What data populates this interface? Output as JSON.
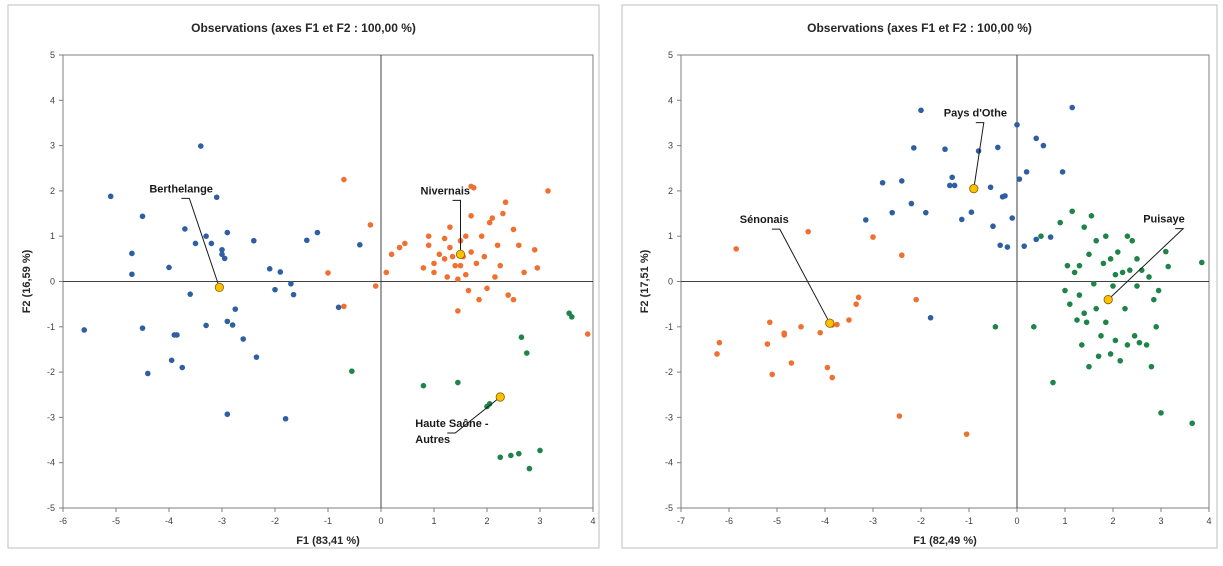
{
  "chart_data": [
    {
      "type": "scatter",
      "title": "Observations (axes F1 et F2 : 100,00 %)",
      "xlabel": "F1 (83,41 %)",
      "ylabel": "F2 (16,59 %)",
      "xlim": [
        -6,
        4
      ],
      "ylim": [
        -5,
        5
      ],
      "xticks": [
        "-6",
        "-5",
        "-4",
        "-3",
        "-2",
        "-1",
        "0",
        "1",
        "2",
        "3",
        "4"
      ],
      "yticks": [
        "-5",
        "-4",
        "-3",
        "-2",
        "-1",
        "0",
        "1",
        "2",
        "3",
        "4",
        "5"
      ],
      "grid": false,
      "legend": "none",
      "colors": {
        "blue": "#2e5fa3",
        "orange": "#ef7030",
        "green": "#1f8449",
        "centroid": "#ffc000"
      },
      "series": [
        {
          "color": "blue",
          "points": [
            [
              -5.6,
              -1.07
            ],
            [
              -5.1,
              1.88
            ],
            [
              -4.7,
              0.62
            ],
            [
              -4.7,
              0.16
            ],
            [
              -4.5,
              1.44
            ],
            [
              -4.5,
              -1.03
            ],
            [
              -4.4,
              -2.03
            ],
            [
              -4.0,
              0.31
            ],
            [
              -3.95,
              -1.74
            ],
            [
              -3.9,
              -1.18
            ],
            [
              -3.85,
              -1.18
            ],
            [
              -3.75,
              -1.9
            ],
            [
              -3.7,
              1.16
            ],
            [
              -3.6,
              -0.28
            ],
            [
              -3.5,
              0.84
            ],
            [
              -3.4,
              2.99
            ],
            [
              -3.3,
              -0.97
            ],
            [
              -3.3,
              1.0
            ],
            [
              -3.2,
              0.84
            ],
            [
              -3.1,
              1.86
            ],
            [
              -3.0,
              0.7
            ],
            [
              -3.0,
              0.6
            ],
            [
              -2.95,
              0.51
            ],
            [
              -2.9,
              1.08
            ],
            [
              -2.9,
              -0.88
            ],
            [
              -2.8,
              -0.96
            ],
            [
              -2.9,
              -2.93
            ],
            [
              -2.75,
              -0.61
            ],
            [
              -2.6,
              -1.27
            ],
            [
              -2.4,
              0.9
            ],
            [
              -2.35,
              -1.67
            ],
            [
              -2.1,
              0.28
            ],
            [
              -2.0,
              -0.18
            ],
            [
              -1.9,
              0.21
            ],
            [
              -1.8,
              -3.03
            ],
            [
              -1.7,
              -0.05
            ],
            [
              -1.65,
              -0.29
            ],
            [
              -1.4,
              0.91
            ],
            [
              -1.2,
              1.08
            ],
            [
              -0.8,
              -0.57
            ],
            [
              -0.4,
              0.81
            ]
          ]
        },
        {
          "color": "orange",
          "points": [
            [
              -1.0,
              0.19
            ],
            [
              -0.7,
              2.25
            ],
            [
              -0.7,
              -0.55
            ],
            [
              -0.2,
              1.25
            ],
            [
              -0.1,
              -0.1
            ],
            [
              0.1,
              0.2
            ],
            [
              0.2,
              0.6
            ],
            [
              0.35,
              0.75
            ],
            [
              0.45,
              0.84
            ],
            [
              0.8,
              0.3
            ],
            [
              0.9,
              0.8
            ],
            [
              0.9,
              1.0
            ],
            [
              1.0,
              0.4
            ],
            [
              1.0,
              0.2
            ],
            [
              1.1,
              0.6
            ],
            [
              1.2,
              0.5
            ],
            [
              1.2,
              0.95
            ],
            [
              1.25,
              0.1
            ],
            [
              1.3,
              0.75
            ],
            [
              1.3,
              1.2
            ],
            [
              1.35,
              0.55
            ],
            [
              1.4,
              0.35
            ],
            [
              1.45,
              0.05
            ],
            [
              1.45,
              -0.65
            ],
            [
              1.5,
              0.9
            ],
            [
              1.5,
              0.35
            ],
            [
              1.55,
              0.55
            ],
            [
              1.6,
              1.0
            ],
            [
              1.6,
              0.15
            ],
            [
              1.65,
              -0.2
            ],
            [
              1.7,
              0.65
            ],
            [
              1.7,
              1.45
            ],
            [
              1.7,
              2.1
            ],
            [
              1.75,
              2.07
            ],
            [
              1.8,
              0.4
            ],
            [
              1.85,
              -0.4
            ],
            [
              1.9,
              1.0
            ],
            [
              1.95,
              0.55
            ],
            [
              2.0,
              -0.15
            ],
            [
              2.05,
              1.3
            ],
            [
              2.1,
              1.4
            ],
            [
              2.15,
              0.1
            ],
            [
              2.2,
              0.8
            ],
            [
              2.25,
              0.35
            ],
            [
              2.3,
              1.5
            ],
            [
              2.35,
              1.75
            ],
            [
              2.4,
              -0.3
            ],
            [
              2.5,
              1.15
            ],
            [
              2.5,
              -0.4
            ],
            [
              2.6,
              0.8
            ],
            [
              2.7,
              0.2
            ],
            [
              2.9,
              0.7
            ],
            [
              2.95,
              0.3
            ],
            [
              3.15,
              2.0
            ],
            [
              3.9,
              -1.16
            ]
          ]
        },
        {
          "color": "green",
          "points": [
            [
              -0.55,
              -1.98
            ],
            [
              0.8,
              -2.3
            ],
            [
              1.45,
              -2.23
            ],
            [
              2.0,
              -2.76
            ],
            [
              2.05,
              -2.7
            ],
            [
              2.25,
              -3.88
            ],
            [
              2.45,
              -3.84
            ],
            [
              2.6,
              -3.8
            ],
            [
              2.65,
              -1.23
            ],
            [
              2.75,
              -1.58
            ],
            [
              2.8,
              -4.13
            ],
            [
              3.0,
              -3.73
            ],
            [
              3.55,
              -0.7
            ],
            [
              3.6,
              -0.78
            ]
          ]
        }
      ],
      "centroids": [
        {
          "label": "Berthelange",
          "x": -3.05,
          "y": -0.13
        },
        {
          "label": "Nivernais",
          "x": 1.5,
          "y": 0.6
        },
        {
          "label": "Haute Saône -\nAutres",
          "x": 2.25,
          "y": -2.55
        }
      ]
    },
    {
      "type": "scatter",
      "title": "Observations (axes F1 et F2 : 100,00 %)",
      "xlabel": "F1 (82,49 %)",
      "ylabel": "F2 (17,51 %)",
      "xlim": [
        -7,
        4
      ],
      "ylim": [
        -5,
        5
      ],
      "xticks": [
        "-7",
        "-6",
        "-5",
        "-4",
        "-3",
        "-2",
        "-1",
        "0",
        "1",
        "2",
        "3",
        "4"
      ],
      "yticks": [
        "-5",
        "-4",
        "-3",
        "-2",
        "-1",
        "0",
        "1",
        "2",
        "3",
        "4",
        "5"
      ],
      "grid": false,
      "legend": "none",
      "colors": {
        "blue": "#2e5fa3",
        "orange": "#ef7030",
        "green": "#1f8449",
        "centroid": "#ffc000"
      },
      "series": [
        {
          "color": "blue",
          "points": [
            [
              -3.15,
              1.36
            ],
            [
              -2.8,
              2.18
            ],
            [
              -2.6,
              1.52
            ],
            [
              -2.4,
              2.22
            ],
            [
              -2.2,
              1.72
            ],
            [
              -2.15,
              2.95
            ],
            [
              -2.0,
              3.78
            ],
            [
              -1.9,
              1.52
            ],
            [
              -1.8,
              -0.8
            ],
            [
              -1.5,
              2.92
            ],
            [
              -1.4,
              2.12
            ],
            [
              -1.35,
              2.3
            ],
            [
              -1.3,
              2.12
            ],
            [
              -1.15,
              1.37
            ],
            [
              -0.95,
              1.53
            ],
            [
              -0.8,
              2.88
            ],
            [
              -0.55,
              2.08
            ],
            [
              -0.5,
              1.22
            ],
            [
              -0.4,
              2.96
            ],
            [
              -0.35,
              0.8
            ],
            [
              -0.3,
              1.87
            ],
            [
              -0.25,
              1.89
            ],
            [
              -0.2,
              0.76
            ],
            [
              -0.1,
              1.4
            ],
            [
              0.0,
              3.46
            ],
            [
              0.05,
              2.26
            ],
            [
              0.15,
              0.78
            ],
            [
              0.2,
              2.42
            ],
            [
              0.4,
              3.16
            ],
            [
              0.4,
              0.93
            ],
            [
              0.55,
              3.0
            ],
            [
              0.7,
              0.98
            ],
            [
              0.95,
              2.42
            ],
            [
              1.15,
              3.84
            ]
          ]
        },
        {
          "color": "orange",
          "points": [
            [
              -6.25,
              -1.6
            ],
            [
              -6.2,
              -1.35
            ],
            [
              -5.85,
              0.72
            ],
            [
              -5.15,
              -0.9
            ],
            [
              -5.2,
              -1.38
            ],
            [
              -5.1,
              -2.05
            ],
            [
              -4.85,
              -1.18
            ],
            [
              -4.85,
              -1.14
            ],
            [
              -4.7,
              -1.8
            ],
            [
              -4.5,
              -1.0
            ],
            [
              -4.35,
              1.1
            ],
            [
              -4.1,
              -1.13
            ],
            [
              -3.95,
              -1.9
            ],
            [
              -3.85,
              -2.12
            ],
            [
              -3.85,
              -0.96
            ],
            [
              -3.75,
              -0.95
            ],
            [
              -3.5,
              -0.85
            ],
            [
              -3.35,
              -0.5
            ],
            [
              -3.3,
              -0.35
            ],
            [
              -3.0,
              0.98
            ],
            [
              -2.4,
              0.58
            ],
            [
              -2.45,
              -2.97
            ],
            [
              -2.1,
              -0.4
            ],
            [
              -1.05,
              -3.37
            ]
          ]
        },
        {
          "color": "green",
          "points": [
            [
              -0.45,
              -1.0
            ],
            [
              0.35,
              -1.0
            ],
            [
              0.5,
              1.0
            ],
            [
              0.75,
              -2.23
            ],
            [
              0.9,
              1.3
            ],
            [
              1.0,
              -0.2
            ],
            [
              1.05,
              0.35
            ],
            [
              1.1,
              -0.5
            ],
            [
              1.15,
              1.55
            ],
            [
              1.2,
              0.2
            ],
            [
              1.25,
              -0.85
            ],
            [
              1.3,
              0.35
            ],
            [
              1.3,
              -0.3
            ],
            [
              1.35,
              -1.4
            ],
            [
              1.4,
              -0.7
            ],
            [
              1.4,
              1.2
            ],
            [
              1.45,
              -0.9
            ],
            [
              1.5,
              -1.88
            ],
            [
              1.5,
              0.6
            ],
            [
              1.55,
              1.45
            ],
            [
              1.6,
              -0.05
            ],
            [
              1.65,
              -0.6
            ],
            [
              1.65,
              0.9
            ],
            [
              1.7,
              -1.65
            ],
            [
              1.75,
              -1.2
            ],
            [
              1.8,
              0.4
            ],
            [
              1.85,
              1.0
            ],
            [
              1.85,
              -0.9
            ],
            [
              1.95,
              0.5
            ],
            [
              1.95,
              -1.6
            ],
            [
              2.0,
              -0.1
            ],
            [
              2.05,
              0.15
            ],
            [
              2.05,
              -1.3
            ],
            [
              2.1,
              0.65
            ],
            [
              2.15,
              -1.75
            ],
            [
              2.2,
              0.2
            ],
            [
              2.25,
              -0.6
            ],
            [
              2.3,
              1.0
            ],
            [
              2.3,
              -1.4
            ],
            [
              2.35,
              0.25
            ],
            [
              2.4,
              0.9
            ],
            [
              2.45,
              -1.2
            ],
            [
              2.5,
              0.5
            ],
            [
              2.5,
              -0.1
            ],
            [
              2.55,
              -1.35
            ],
            [
              2.6,
              0.25
            ],
            [
              2.7,
              -1.4
            ],
            [
              2.75,
              0.1
            ],
            [
              2.8,
              -1.88
            ],
            [
              2.85,
              -0.4
            ],
            [
              2.9,
              -1.0
            ],
            [
              2.95,
              -0.2
            ],
            [
              3.0,
              -2.9
            ],
            [
              3.1,
              0.66
            ],
            [
              3.15,
              0.33
            ],
            [
              3.65,
              -3.13
            ],
            [
              3.85,
              0.42
            ]
          ]
        }
      ],
      "centroids": [
        {
          "label": "Sénonais",
          "x": -3.9,
          "y": -0.92
        },
        {
          "label": "Pays d'Othe",
          "x": -0.9,
          "y": 2.05
        },
        {
          "label": "Puisaye",
          "x": 1.9,
          "y": -0.4
        }
      ]
    }
  ]
}
